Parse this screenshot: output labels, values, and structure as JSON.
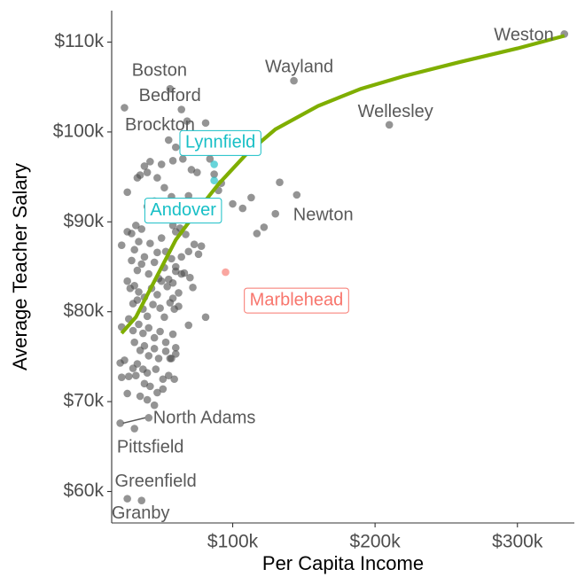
{
  "chart_data": {
    "type": "scatter",
    "title": "",
    "xlabel": "Per Capita Income",
    "ylabel": "Average Teacher Salary",
    "xlim": [
      15000,
      340000
    ],
    "ylim": [
      56500,
      113500
    ],
    "x_ticks": [
      {
        "value": 100000,
        "label": "$100k"
      },
      {
        "value": 200000,
        "label": "$200k"
      },
      {
        "value": 300000,
        "label": "$300k"
      }
    ],
    "y_ticks": [
      {
        "value": 60000,
        "label": "$60k"
      },
      {
        "value": 70000,
        "label": "$70k"
      },
      {
        "value": 80000,
        "label": "$80k"
      },
      {
        "value": 90000,
        "label": "$90k"
      },
      {
        "value": 100000,
        "label": "$100k"
      },
      {
        "value": 110000,
        "label": "$110k"
      }
    ],
    "grid": false,
    "colors": {
      "point": "#4d4d4d",
      "smooth": "#7fae00",
      "highlight_cyan": "#17bfc6",
      "highlight_red": "#f8766d",
      "label_gray": "#595959"
    },
    "smooth_line": [
      [
        22000,
        77600
      ],
      [
        32000,
        79400
      ],
      [
        45000,
        83400
      ],
      [
        60000,
        88000
      ],
      [
        75000,
        91200
      ],
      [
        90000,
        94200
      ],
      [
        110000,
        97600
      ],
      [
        130000,
        100300
      ],
      [
        160000,
        102900
      ],
      [
        190000,
        104800
      ],
      [
        220000,
        106200
      ],
      [
        260000,
        107800
      ],
      [
        300000,
        109300
      ],
      [
        333000,
        110700
      ]
    ],
    "background_points": [
      [
        24000,
        102700
      ],
      [
        56000,
        104800
      ],
      [
        64000,
        102500
      ],
      [
        68000,
        101200
      ],
      [
        81000,
        101000
      ],
      [
        55000,
        99100
      ],
      [
        60000,
        98300
      ],
      [
        35000,
        95200
      ],
      [
        38000,
        96200
      ],
      [
        42000,
        96700
      ],
      [
        50000,
        96400
      ],
      [
        58000,
        96800
      ],
      [
        65000,
        97000
      ],
      [
        71000,
        95800
      ],
      [
        75000,
        95500
      ],
      [
        84000,
        97000
      ],
      [
        26000,
        93300
      ],
      [
        33000,
        94900
      ],
      [
        40000,
        95500
      ],
      [
        47000,
        94900
      ],
      [
        52000,
        93800
      ],
      [
        57000,
        92800
      ],
      [
        63000,
        92100
      ],
      [
        69000,
        92900
      ],
      [
        72000,
        91800
      ],
      [
        29000,
        88700
      ],
      [
        32000,
        89600
      ],
      [
        36000,
        89200
      ],
      [
        40000,
        91700
      ],
      [
        45000,
        92300
      ],
      [
        50000,
        91400
      ],
      [
        55000,
        90700
      ],
      [
        58000,
        89600
      ],
      [
        60000,
        88900
      ],
      [
        63000,
        89300
      ],
      [
        67000,
        88600
      ],
      [
        22000,
        87400
      ],
      [
        26000,
        88900
      ],
      [
        31000,
        86900
      ],
      [
        34000,
        87800
      ],
      [
        38000,
        86100
      ],
      [
        42000,
        87600
      ],
      [
        47000,
        86600
      ],
      [
        50000,
        88200
      ],
      [
        53000,
        86700
      ],
      [
        57000,
        85900
      ],
      [
        60000,
        85000
      ],
      [
        64000,
        86100
      ],
      [
        29000,
        85700
      ],
      [
        33000,
        84600
      ],
      [
        36000,
        85300
      ],
      [
        41000,
        84200
      ],
      [
        45000,
        85500
      ],
      [
        48000,
        83700
      ],
      [
        52000,
        84900
      ],
      [
        55000,
        83600
      ],
      [
        60000,
        84500
      ],
      [
        64000,
        84200
      ],
      [
        26000,
        83400
      ],
      [
        28000,
        82600
      ],
      [
        31000,
        82900
      ],
      [
        34000,
        82200
      ],
      [
        38000,
        81600
      ],
      [
        43000,
        82600
      ],
      [
        47000,
        81900
      ],
      [
        50000,
        83400
      ],
      [
        54000,
        82800
      ],
      [
        58000,
        81500
      ],
      [
        30000,
        80900
      ],
      [
        33000,
        81300
      ],
      [
        37000,
        80300
      ],
      [
        40000,
        79500
      ],
      [
        44000,
        80800
      ],
      [
        49000,
        80400
      ],
      [
        52000,
        79400
      ],
      [
        56000,
        81000
      ],
      [
        59000,
        80300
      ],
      [
        62000,
        80600
      ],
      [
        22000,
        78300
      ],
      [
        27000,
        79200
      ],
      [
        30000,
        77900
      ],
      [
        34000,
        78600
      ],
      [
        37000,
        77600
      ],
      [
        41000,
        78200
      ],
      [
        45000,
        77100
      ],
      [
        49000,
        77800
      ],
      [
        53000,
        76600
      ],
      [
        58000,
        77500
      ],
      [
        60000,
        76000
      ],
      [
        56000,
        74800
      ],
      [
        69000,
        78500
      ],
      [
        81000,
        79400
      ],
      [
        31000,
        76600
      ],
      [
        35000,
        75700
      ],
      [
        38000,
        76200
      ],
      [
        41000,
        75100
      ],
      [
        45000,
        75900
      ],
      [
        48000,
        74800
      ],
      [
        53000,
        75600
      ],
      [
        57000,
        74800
      ],
      [
        60000,
        75300
      ],
      [
        21000,
        74300
      ],
      [
        24000,
        74600
      ],
      [
        30000,
        73700
      ],
      [
        33000,
        74200
      ],
      [
        37000,
        73600
      ],
      [
        40000,
        73200
      ],
      [
        46000,
        73600
      ],
      [
        51000,
        72500
      ],
      [
        55000,
        72900
      ],
      [
        59000,
        72500
      ],
      [
        22000,
        72700
      ],
      [
        27000,
        72800
      ],
      [
        32000,
        72900
      ],
      [
        38000,
        72000
      ],
      [
        42000,
        71700
      ],
      [
        47000,
        71000
      ],
      [
        51000,
        71400
      ],
      [
        26000,
        70900
      ],
      [
        35000,
        70600
      ],
      [
        40000,
        70200
      ],
      [
        45000,
        69600
      ],
      [
        58000,
        83200
      ],
      [
        62000,
        82100
      ],
      [
        66000,
        84300
      ],
      [
        70000,
        83800
      ],
      [
        72000,
        82700
      ],
      [
        69000,
        86700
      ],
      [
        73000,
        87500
      ],
      [
        78000,
        87300
      ],
      [
        76000,
        86400
      ],
      [
        79000,
        99200
      ],
      [
        86000,
        98300
      ],
      [
        87000,
        95300
      ],
      [
        92000,
        94300
      ],
      [
        100000,
        92000
      ],
      [
        107000,
        91500
      ],
      [
        113000,
        92700
      ],
      [
        90000,
        93500
      ],
      [
        117000,
        88700
      ],
      [
        122000,
        89400
      ],
      [
        130000,
        90900
      ],
      [
        145000,
        93000
      ],
      [
        133000,
        94400
      ],
      [
        143000,
        105700
      ],
      [
        210000,
        100800
      ],
      [
        333000,
        110900
      ],
      [
        21000,
        67600
      ],
      [
        31000,
        67000
      ],
      [
        41000,
        68200
      ],
      [
        26000,
        59200
      ],
      [
        36000,
        59000
      ]
    ],
    "highlight_points": [
      {
        "x": 87000,
        "y": 96400,
        "group": "cyan"
      },
      {
        "x": 87000,
        "y": 94600,
        "group": "cyan"
      },
      {
        "x": 95000,
        "y": 84400,
        "group": "red"
      }
    ],
    "text_labels": [
      {
        "text": "Weston",
        "x": 333000,
        "y": 110900,
        "dx": -12,
        "dy": 2,
        "anchor": "end"
      },
      {
        "text": "Boston",
        "x": 56000,
        "y": 104800,
        "dx": -12,
        "dy": -20,
        "anchor": "middle"
      },
      {
        "text": "Wayland",
        "x": 143000,
        "y": 105700,
        "dx": 6,
        "dy": -15,
        "anchor": "middle"
      },
      {
        "text": "Bedford",
        "x": 64000,
        "y": 102500,
        "dx": -13,
        "dy": -15,
        "anchor": "middle"
      },
      {
        "text": "Wellesley",
        "x": 210000,
        "y": 100800,
        "dx": 7,
        "dy": -14,
        "anchor": "middle"
      },
      {
        "text": "Brockton",
        "x": 24000,
        "y": 102700,
        "dx": 40,
        "dy": 20,
        "anchor": "middle"
      },
      {
        "text": "Newton",
        "x": 130000,
        "y": 90900,
        "dx": 54,
        "dy": 2,
        "anchor": "middle"
      },
      {
        "text": "North Adams",
        "x": 41000,
        "y": 68200,
        "dx": 5,
        "dy": 1,
        "anchor": "start"
      },
      {
        "text": "Pittsfield",
        "x": 21000,
        "y": 67600,
        "dx": 34,
        "dy": 28,
        "anchor": "middle"
      },
      {
        "text": "Greenfield",
        "x": 26000,
        "y": 59200,
        "dx": 32,
        "dy": -19,
        "anchor": "middle"
      },
      {
        "text": "Granby",
        "x": 26000,
        "y": 59200,
        "dx": 15,
        "dy": 17,
        "anchor": "middle"
      }
    ],
    "boxed_labels": [
      {
        "text": "Lynnfield",
        "x": 87000,
        "y": 96400,
        "dx": 7,
        "dy": -24,
        "color": "#17bfc6"
      },
      {
        "text": "Andover",
        "x": 87000,
        "y": 94600,
        "dx": -35,
        "dy": 34,
        "color": "#17bfc6"
      },
      {
        "text": "Marblehead",
        "x": 95000,
        "y": 84400,
        "dx": 80,
        "dy": 32,
        "color": "#f8766d"
      }
    ],
    "leader_segments": [
      {
        "x1": 21000,
        "y1": 67600,
        "x2": 41000,
        "y2": 68200
      }
    ]
  }
}
